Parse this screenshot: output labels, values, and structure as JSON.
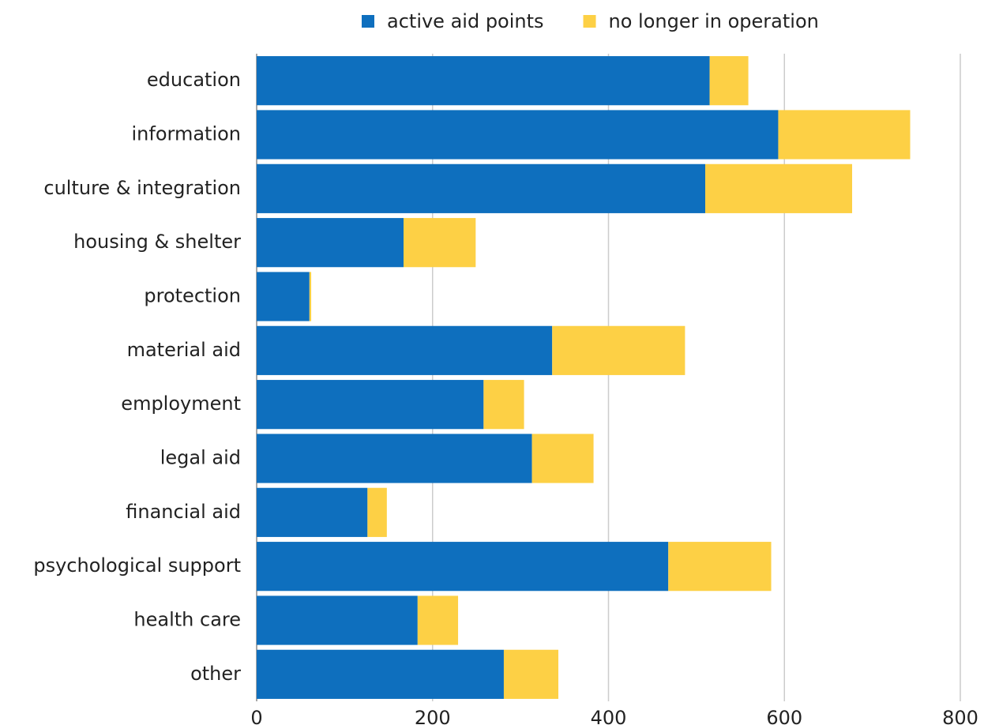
{
  "chart_data": {
    "type": "bar",
    "stacked": true,
    "orientation": "horizontal",
    "categories": [
      "education",
      "information",
      "culture & integration",
      "housing & shelter",
      "protection",
      "material aid",
      "employment",
      "legal aid",
      "financial aid",
      "psychological support",
      "health care",
      "other"
    ],
    "series": [
      {
        "name": "active aid points",
        "color": "#0e6fbe",
        "values": [
          515,
          593,
          510,
          167,
          60,
          336,
          258,
          313,
          126,
          468,
          183,
          281
        ]
      },
      {
        "name": "no longer in operation",
        "color": "#fdd045",
        "values": [
          44,
          150,
          167,
          82,
          2,
          151,
          46,
          70,
          22,
          117,
          46,
          62
        ]
      }
    ],
    "xlim": [
      0,
      800
    ],
    "xticks": [
      0,
      200,
      400,
      600,
      800
    ],
    "grid": true,
    "legend": "top"
  }
}
